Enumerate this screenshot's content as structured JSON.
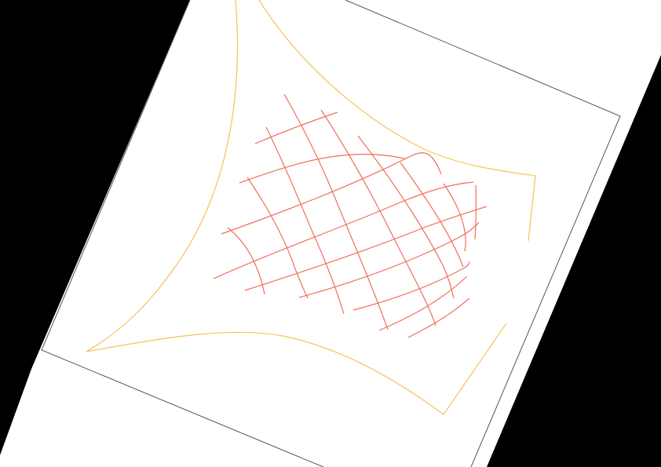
{
  "colors": {
    "background": "#000000",
    "page": "#ffffff",
    "frame": "#555555",
    "mesh": "#ef6f5e",
    "boundary": "#f5c35a"
  }
}
